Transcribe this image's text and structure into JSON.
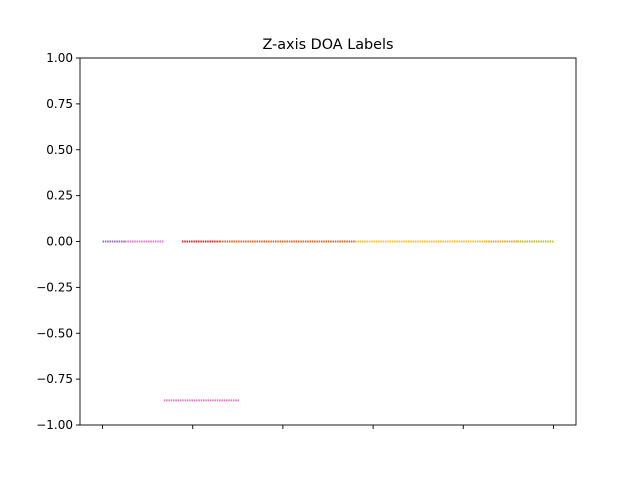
{
  "chart_data": {
    "type": "scatter",
    "title": "Z-axis DOA Labels",
    "xlabel": "",
    "ylabel": "",
    "xlim": [
      -0.25,
      5.25
    ],
    "ylim": [
      -1.0,
      1.0
    ],
    "x_ticks": [
      0,
      1,
      2,
      3,
      4,
      5
    ],
    "x_tick_labels": [
      "",
      "",
      "",
      "",
      "",
      ""
    ],
    "y_ticks": [
      1.0,
      0.75,
      0.5,
      0.25,
      0.0,
      -0.25,
      -0.5,
      -0.75,
      -1.0
    ],
    "y_tick_labels": [
      "1.00",
      "0.75",
      "0.50",
      "0.25",
      "0.00",
      "−0.25",
      "−0.50",
      "−0.75",
      "−1.00"
    ],
    "grid": false,
    "legend": "none",
    "segments": [
      {
        "x": [
          0.0,
          0.25
        ],
        "y": 0.0,
        "color": "#9467bd"
      },
      {
        "x": [
          0.25,
          0.68
        ],
        "y": 0.0,
        "color": "#e377c2"
      },
      {
        "x": [
          0.68,
          1.52
        ],
        "y": -0.866,
        "color": "#e377c2"
      },
      {
        "x": [
          0.88,
          1.3
        ],
        "y": 0.0,
        "color": "#d62728"
      },
      {
        "x": [
          1.3,
          2.8
        ],
        "y": 0.0,
        "color": "#d2691e"
      },
      {
        "x": [
          2.8,
          4.25
        ],
        "y": 0.0,
        "color": "#f0c020"
      },
      {
        "x": [
          4.25,
          4.6
        ],
        "y": 0.0,
        "color": "#e0a820"
      },
      {
        "x": [
          4.6,
          5.0
        ],
        "y": 0.0,
        "color": "#bcbd22"
      }
    ]
  }
}
